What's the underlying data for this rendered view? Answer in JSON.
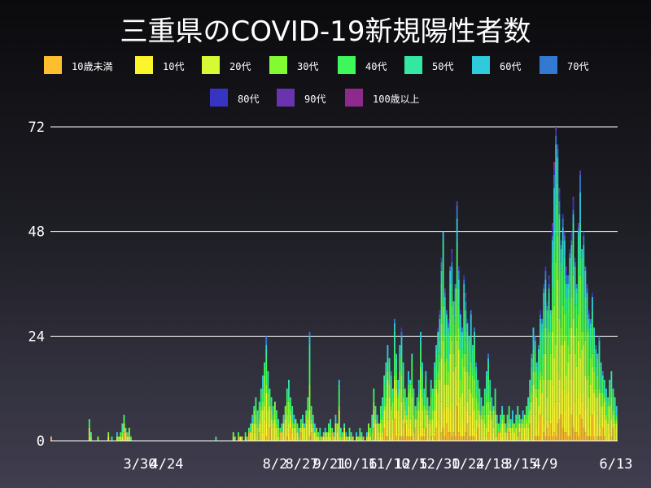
{
  "chart_data": {
    "type": "bar",
    "stacked": true,
    "title": "三重県のCOVID-19新規陽性者数",
    "xlabel": "",
    "ylabel": "",
    "ylim": [
      0,
      72
    ],
    "y_ticks": [
      0,
      24,
      48,
      72
    ],
    "x_tick_labels": [
      "3/30",
      "4/24",
      "8/2",
      "8/27",
      "9/21",
      "10/16",
      "11/10",
      "12/5",
      "12/30",
      "1/24",
      "2/18",
      "3/15",
      "4/9",
      "6/13"
    ],
    "grid": "horizontal",
    "legend_position": "top",
    "series": [
      {
        "name": "10歳未満",
        "color": "#fdbf2d"
      },
      {
        "name": "10代",
        "color": "#fbf52c"
      },
      {
        "name": "20代",
        "color": "#d6fb35"
      },
      {
        "name": "30代",
        "color": "#83fb33"
      },
      {
        "name": "40代",
        "color": "#3ef75a"
      },
      {
        "name": "50代",
        "color": "#33e8a3"
      },
      {
        "name": "60代",
        "color": "#2fcadb"
      },
      {
        "name": "70代",
        "color": "#3379d1"
      },
      {
        "name": "80代",
        "color": "#3734c4"
      },
      {
        "name": "90代",
        "color": "#6a33b0"
      },
      {
        "name": "100歳以上",
        "color": "#8e2a8c"
      }
    ],
    "daily_totals": [
      1,
      0,
      0,
      0,
      0,
      0,
      0,
      0,
      0,
      0,
      0,
      0,
      0,
      0,
      0,
      0,
      0,
      0,
      0,
      0,
      0,
      0,
      5,
      2,
      0,
      0,
      0,
      1,
      0,
      0,
      0,
      0,
      0,
      2,
      0,
      1,
      0,
      0,
      2,
      1,
      2,
      4,
      6,
      3,
      2,
      3,
      1,
      0,
      0,
      0,
      0,
      0,
      0,
      0,
      0,
      0,
      0,
      0,
      0,
      0,
      0,
      0,
      0,
      0,
      0,
      0,
      0,
      0,
      0,
      0,
      0,
      0,
      0,
      0,
      0,
      0,
      0,
      0,
      0,
      0,
      0,
      0,
      0,
      0,
      0,
      0,
      0,
      0,
      0,
      0,
      0,
      0,
      0,
      0,
      0,
      1,
      0,
      0,
      0,
      0,
      0,
      0,
      0,
      0,
      0,
      2,
      1,
      0,
      2,
      1,
      1,
      0,
      2,
      1,
      3,
      4,
      6,
      8,
      10,
      7,
      9,
      12,
      15,
      18,
      24,
      16,
      12,
      10,
      8,
      9,
      7,
      5,
      3,
      4,
      6,
      8,
      12,
      14,
      10,
      8,
      6,
      5,
      4,
      3,
      5,
      6,
      4,
      7,
      10,
      25,
      8,
      6,
      4,
      3,
      2,
      3,
      1,
      2,
      3,
      2,
      4,
      5,
      3,
      2,
      6,
      4,
      14,
      3,
      2,
      4,
      2,
      1,
      3,
      2,
      1,
      0,
      2,
      1,
      3,
      2,
      1,
      0,
      2,
      4,
      3,
      6,
      12,
      8,
      6,
      4,
      8,
      10,
      15,
      18,
      22,
      19,
      16,
      12,
      28,
      20,
      14,
      22,
      26,
      18,
      12,
      10,
      16,
      14,
      20,
      12,
      8,
      10,
      14,
      25,
      18,
      12,
      16,
      10,
      8,
      14,
      12,
      18,
      22,
      26,
      30,
      42,
      48,
      35,
      30,
      28,
      40,
      44,
      32,
      36,
      55,
      40,
      30,
      26,
      38,
      34,
      28,
      24,
      30,
      22,
      26,
      18,
      14,
      12,
      10,
      8,
      12,
      16,
      20,
      14,
      10,
      8,
      12,
      6,
      4,
      6,
      8,
      6,
      4,
      6,
      8,
      5,
      7,
      4,
      6,
      8,
      6,
      5,
      7,
      6,
      8,
      10,
      14,
      20,
      26,
      24,
      18,
      22,
      30,
      28,
      36,
      40,
      32,
      38,
      30,
      50,
      64,
      72,
      68,
      58,
      46,
      52,
      48,
      40,
      38,
      44,
      48,
      56,
      42,
      36,
      50,
      62,
      44,
      48,
      40,
      36,
      30,
      28,
      34,
      26,
      22,
      20,
      24,
      18,
      16,
      14,
      12,
      10,
      14,
      16,
      12,
      10,
      8
    ]
  }
}
